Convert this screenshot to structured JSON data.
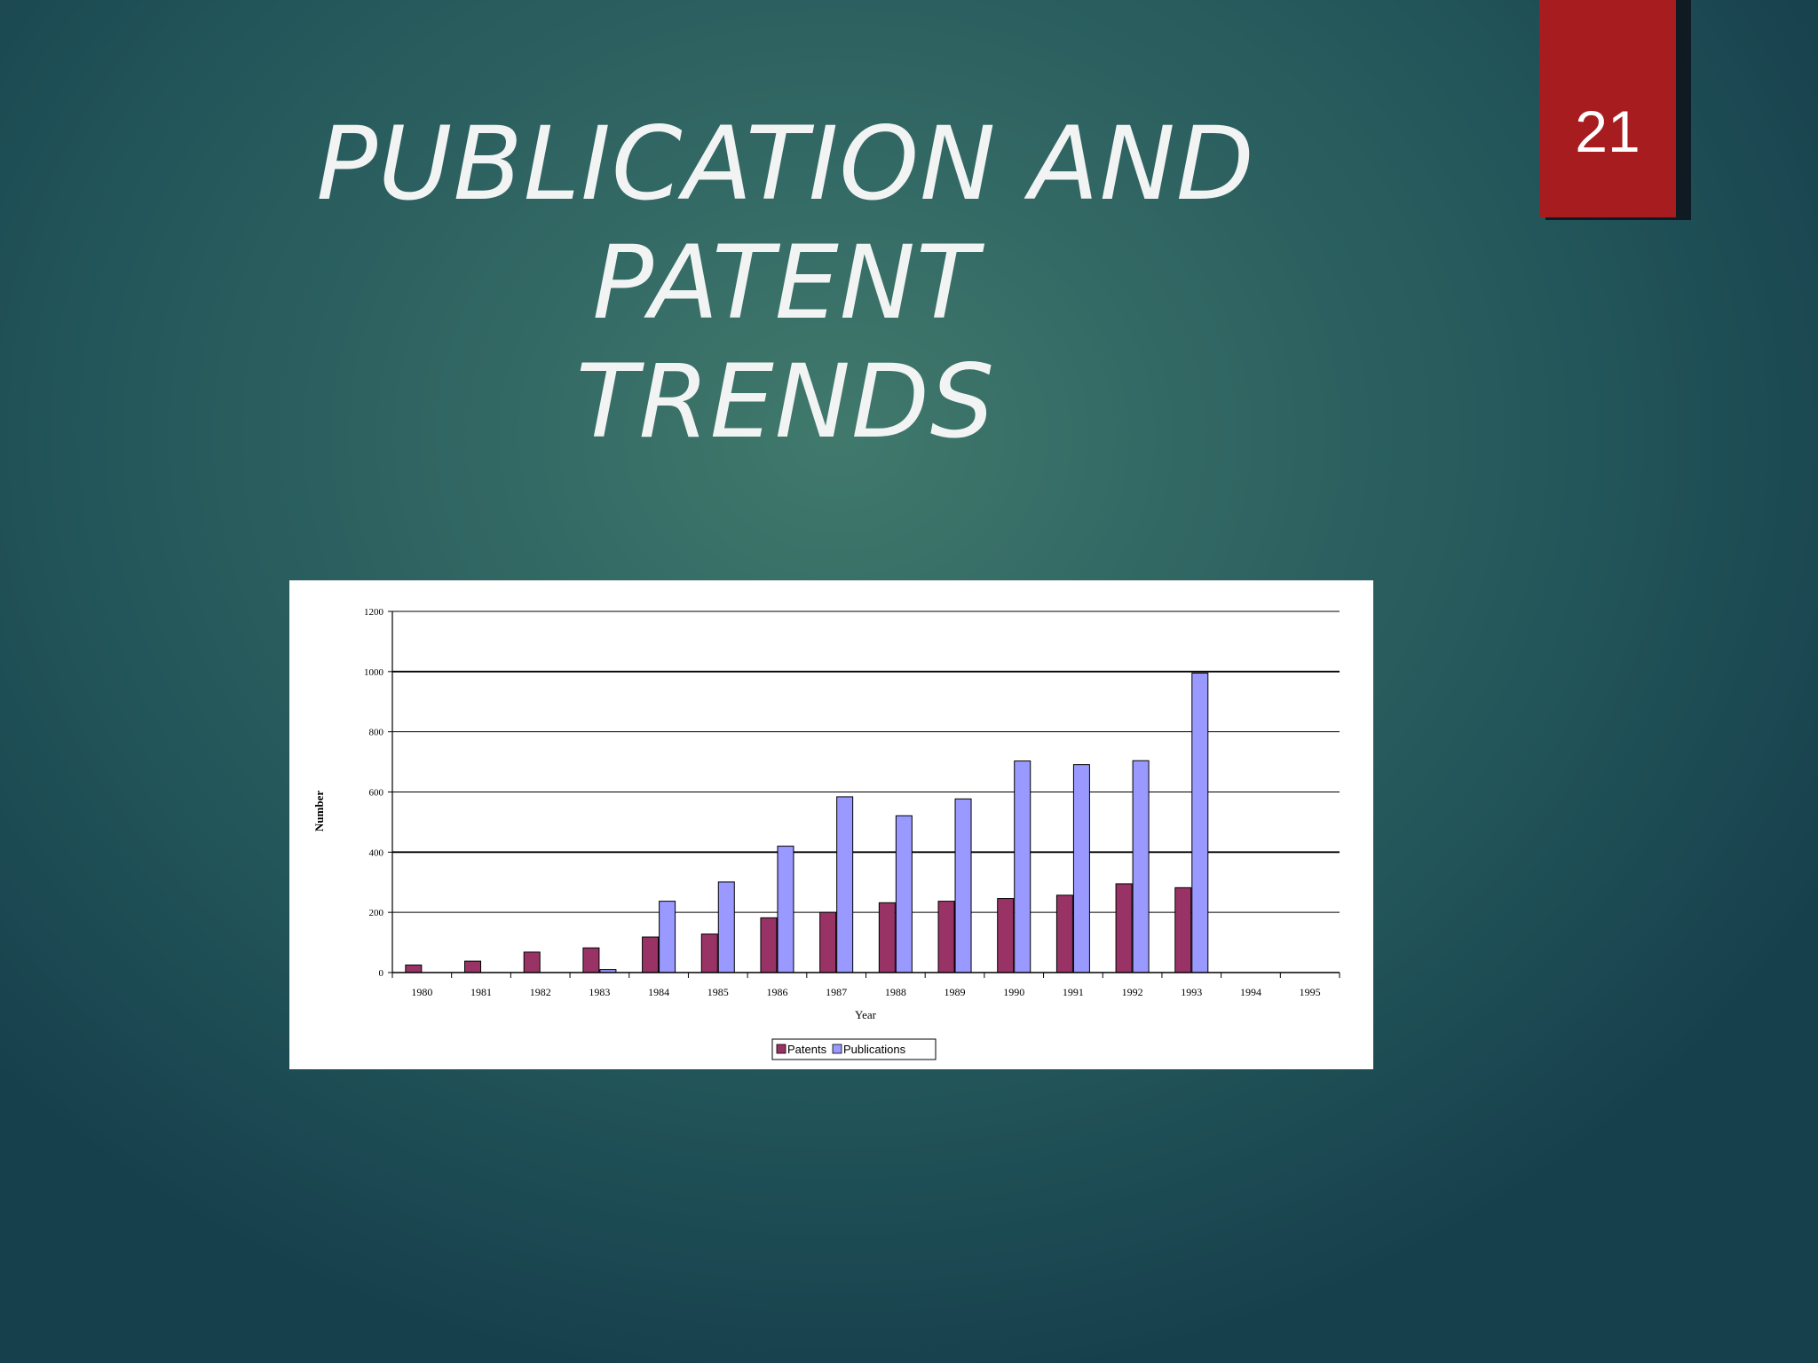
{
  "slide": {
    "title_line1": "PUBLICATION AND PATENT",
    "title_line2": "TRENDS",
    "page_number": "21",
    "colors": {
      "badge": "#a71c1e",
      "title": "#f2f4f4"
    }
  },
  "chart_data": {
    "type": "bar",
    "categories": [
      "1980",
      "1981",
      "1982",
      "1983",
      "1984",
      "1985",
      "1986",
      "1987",
      "1988",
      "1989",
      "1990",
      "1991",
      "1992",
      "1993",
      "1994",
      "1995"
    ],
    "series": [
      {
        "name": "Patents",
        "color": "#993366",
        "values": [
          25,
          38,
          68,
          82,
          118,
          128,
          182,
          200,
          232,
          237,
          246,
          257,
          295,
          282,
          0,
          0
        ]
      },
      {
        "name": "Publications",
        "color": "#9999ff",
        "values": [
          0,
          0,
          0,
          10,
          237,
          301,
          420,
          584,
          521,
          577,
          703,
          691,
          704,
          995,
          0,
          0
        ]
      }
    ],
    "xlabel": "Year",
    "ylabel": "Number",
    "ylim": [
      0,
      1200
    ],
    "yticks": [
      0,
      200,
      400,
      600,
      800,
      1000,
      1200
    ],
    "grid": true,
    "legend": "bottom-center"
  }
}
